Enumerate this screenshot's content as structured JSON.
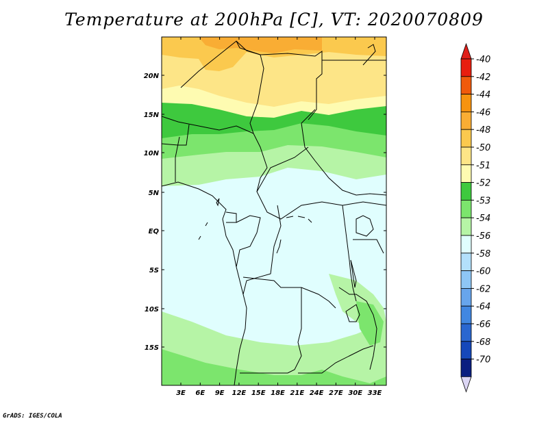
{
  "title": "Temperature at 200hPa [C], VT: 2020070809",
  "footer": "GrADS: IGES/COLA",
  "axes": {
    "lat_ticks": [
      "20N",
      "15N",
      "10N",
      "5N",
      "EQ",
      "5S",
      "10S",
      "15S"
    ],
    "lon_ticks": [
      "3E",
      "6E",
      "9E",
      "12E",
      "15E",
      "18E",
      "21E",
      "24E",
      "27E",
      "30E",
      "33E"
    ]
  },
  "colorbar": {
    "labels": [
      "-40",
      "-42",
      "-44",
      "-46",
      "-48",
      "-50",
      "-51",
      "-52",
      "-53",
      "-54",
      "-56",
      "-58",
      "-60",
      "-62",
      "-64",
      "-66",
      "-68",
      "-70"
    ],
    "colors": [
      "#e81e0f",
      "#f05a0c",
      "#f7930f",
      "#f9ad34",
      "#fbc94e",
      "#fde587",
      "#fefbb1",
      "#3ec93e",
      "#7ce56d",
      "#b6f4a6",
      "#e0fefe",
      "#b3e0fb",
      "#8ec6f5",
      "#67a5ec",
      "#4187e1",
      "#2a67d0",
      "#1548ba",
      "#0a1e80"
    ],
    "over_color": "#e0201a",
    "under_color": "#dcd6f4"
  }
}
